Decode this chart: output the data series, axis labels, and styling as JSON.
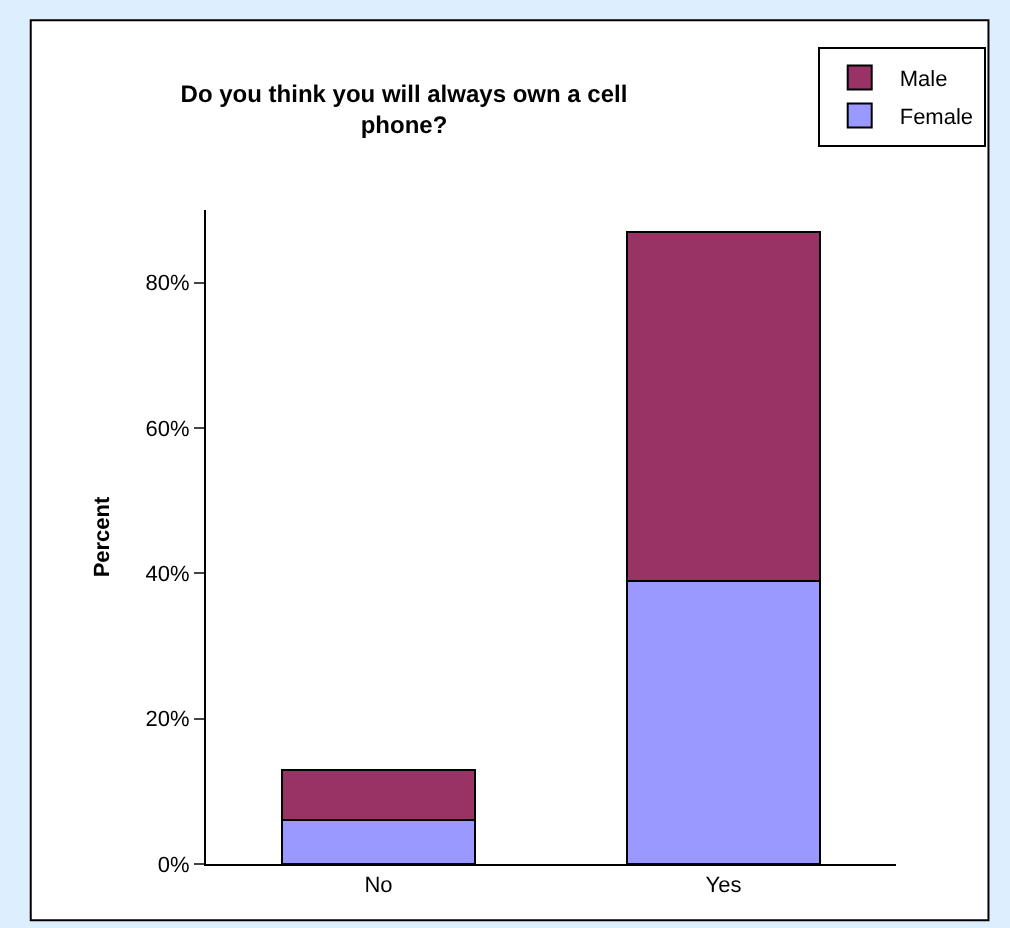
{
  "chart_data": {
    "type": "bar",
    "title": "Do you think you will always own a cell phone?",
    "ylabel": "Percent",
    "categories": [
      "No",
      "Yes"
    ],
    "stacked": true,
    "series": [
      {
        "name": "Female",
        "color": "#9999ff",
        "values": [
          6,
          39
        ]
      },
      {
        "name": "Male",
        "color": "#993366",
        "values": [
          7,
          48
        ]
      }
    ],
    "ylim": [
      0,
      90
    ],
    "yticks": [
      {
        "value": 0,
        "label": "0%"
      },
      {
        "value": 20,
        "label": "20%"
      },
      {
        "value": 40,
        "label": "40%"
      },
      {
        "value": 60,
        "label": "60%"
      },
      {
        "value": 80,
        "label": "80%"
      }
    ],
    "legend": "top right"
  }
}
